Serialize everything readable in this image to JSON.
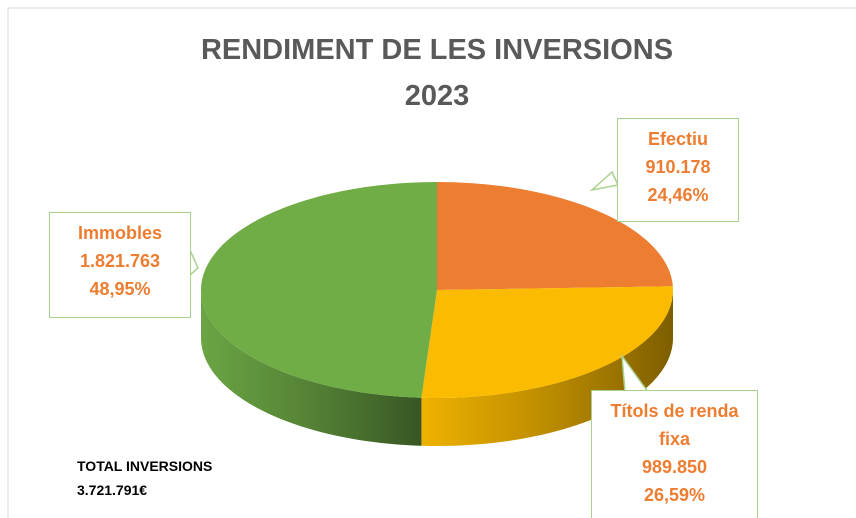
{
  "chart_data": {
    "type": "pie",
    "title": "RENDIMENT DE LES INVERSIONS",
    "subtitle": "2023",
    "categories": [
      "Efectiu",
      "Títols de renda fixa",
      "Immobles"
    ],
    "values": [
      910178,
      989850,
      1821763
    ],
    "value_labels": [
      "910.178",
      "989.850",
      "1.821.763"
    ],
    "percentages": [
      24.46,
      26.59,
      48.95
    ],
    "percentage_labels": [
      "24,46%",
      "26,59%",
      "48,95%"
    ],
    "colors": [
      "#ed7d31",
      "#fbbb00",
      "#70ad47"
    ],
    "annotations": [
      "TOTAL INVERSIONS",
      "3.721.791€"
    ]
  }
}
